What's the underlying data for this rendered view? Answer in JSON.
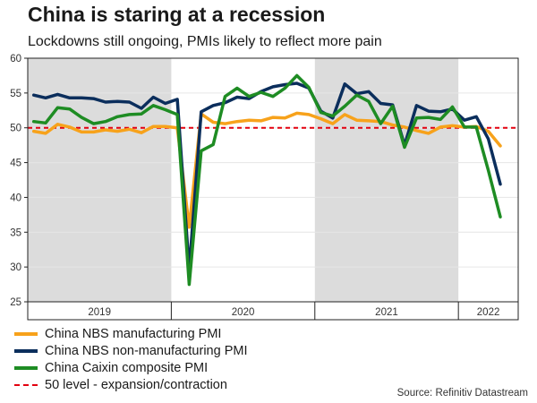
{
  "header": {
    "title": "China is staring at a recession",
    "subtitle": "Lockdowns still ongoing, PMIs likely to reflect more pain"
  },
  "chart_data": {
    "type": "line",
    "ylim": [
      25,
      60
    ],
    "yticks": [
      25,
      30,
      35,
      40,
      45,
      50,
      55,
      60
    ],
    "x_start": "2019-01",
    "x_end": "2022-04",
    "year_labels": [
      "2019",
      "2020",
      "2021",
      "2022"
    ],
    "shaded_years": [
      "2019",
      "2021"
    ],
    "reference_line": {
      "value": 50,
      "name": "50 level - expansion/contraction",
      "color": "#e3000f"
    },
    "series": [
      {
        "name": "China NBS manufacturing PMI",
        "color": "#f7a21b",
        "values": [
          49.5,
          49.2,
          50.5,
          50.1,
          49.4,
          49.4,
          49.7,
          49.5,
          49.8,
          49.3,
          50.2,
          50.2,
          50.0,
          35.7,
          52.0,
          50.8,
          50.6,
          50.9,
          51.1,
          51.0,
          51.5,
          51.4,
          52.1,
          51.9,
          51.3,
          50.6,
          51.9,
          51.1,
          51.0,
          50.9,
          50.4,
          50.1,
          49.6,
          49.2,
          50.1,
          50.3,
          50.1,
          50.2,
          49.5,
          47.4
        ]
      },
      {
        "name": "China NBS non-manufacturing PMI",
        "color": "#0b2e5c",
        "values": [
          54.7,
          54.3,
          54.8,
          54.3,
          54.3,
          54.2,
          53.7,
          53.8,
          53.7,
          52.8,
          54.4,
          53.5,
          54.1,
          29.6,
          52.3,
          53.2,
          53.6,
          54.4,
          54.2,
          55.2,
          55.9,
          56.2,
          56.4,
          55.7,
          52.4,
          51.4,
          56.3,
          54.9,
          55.2,
          53.5,
          53.3,
          47.5,
          53.2,
          52.4,
          52.3,
          52.7,
          51.1,
          51.6,
          48.4,
          41.9
        ]
      },
      {
        "name": "China Caixin composite PMI",
        "color": "#1e8c23",
        "values": [
          50.9,
          50.7,
          52.9,
          52.7,
          51.5,
          50.6,
          50.9,
          51.6,
          51.9,
          52.0,
          53.2,
          52.6,
          51.9,
          27.5,
          46.7,
          47.6,
          54.5,
          55.7,
          54.5,
          55.1,
          54.5,
          55.7,
          57.5,
          55.8,
          52.2,
          51.7,
          53.1,
          54.7,
          53.8,
          50.6,
          53.1,
          47.2,
          51.4,
          51.5,
          51.2,
          53.0,
          50.1,
          50.1,
          43.9,
          37.2
        ]
      }
    ]
  },
  "legend": {
    "items": [
      {
        "label": "China NBS manufacturing PMI",
        "color": "#f7a21b"
      },
      {
        "label": "China NBS non-manufacturing PMI",
        "color": "#0b2e5c"
      },
      {
        "label": "China Caixin composite PMI",
        "color": "#1e8c23"
      }
    ],
    "reference_label": "50 level - expansion/contraction"
  },
  "source": "Source: Refinitiv Datastream"
}
